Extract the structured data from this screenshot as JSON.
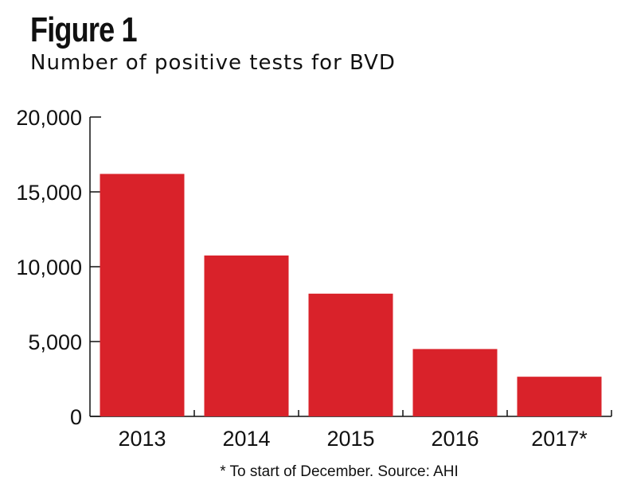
{
  "chart_data": {
    "type": "bar",
    "title": "Figure 1",
    "subtitle": "Number of positive tests for BVD",
    "categories": [
      "2013",
      "2014",
      "2015",
      "2016",
      "2017*"
    ],
    "values": [
      16200,
      10750,
      8200,
      4500,
      2650
    ],
    "xlabel": "",
    "ylabel": "",
    "ylim": [
      0,
      20000
    ],
    "yticks": [
      0,
      5000,
      10000,
      15000,
      20000
    ],
    "ytick_labels": [
      "0",
      "5,000",
      "10,000",
      "15,000",
      "20,000"
    ],
    "bar_color": "#d9222a",
    "grid": false,
    "legend": "none",
    "footnote": "* To start of December. Source: AHI"
  }
}
